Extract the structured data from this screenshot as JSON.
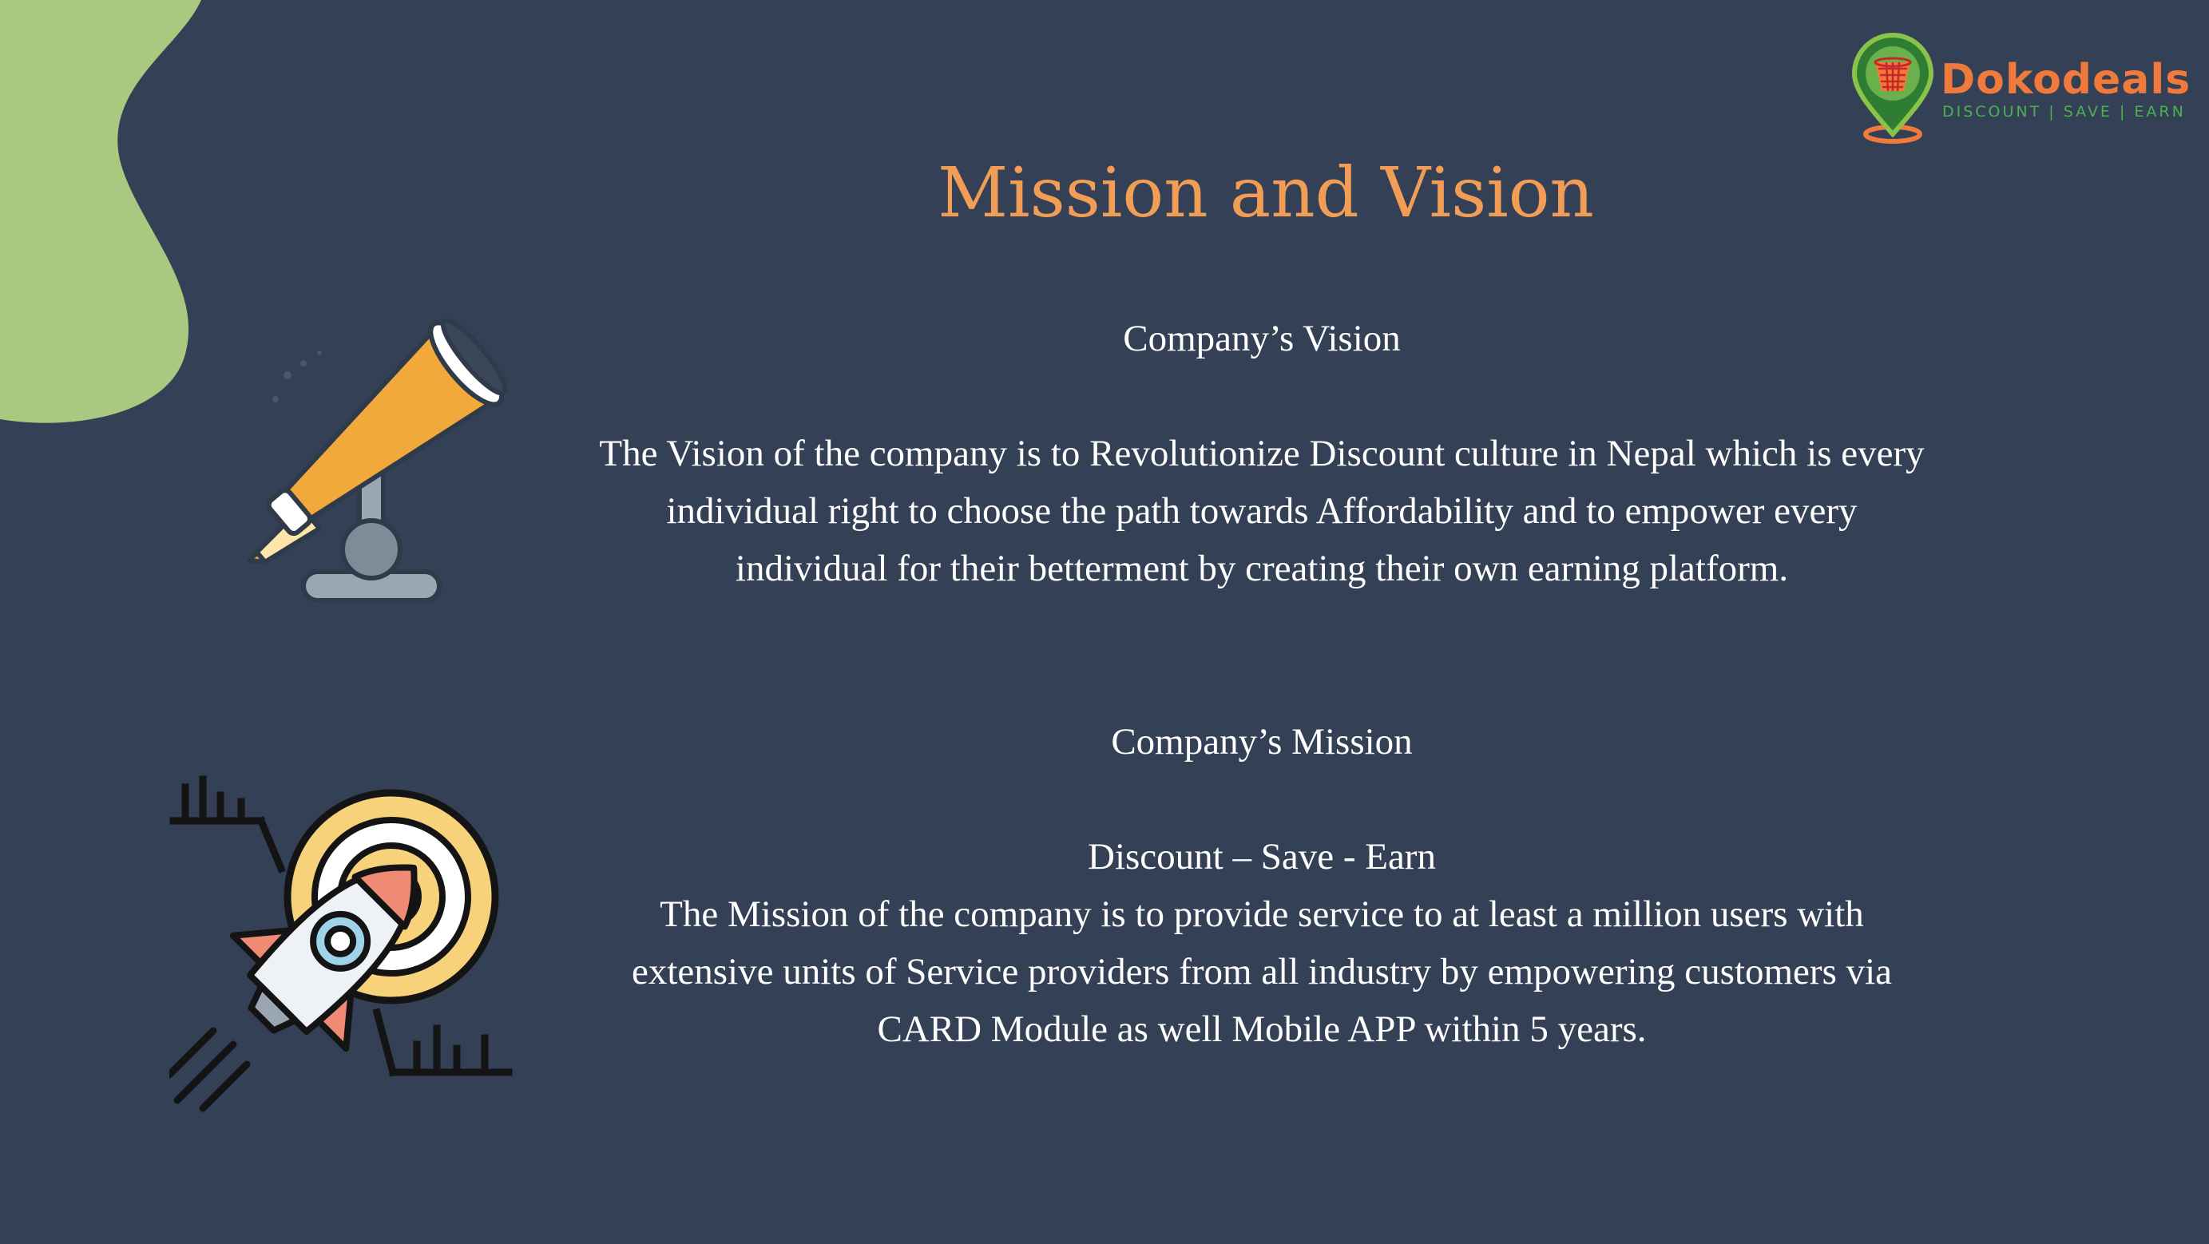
{
  "logo": {
    "name": "Dokodeals",
    "tagline": "DISCOUNT | SAVE | EARN"
  },
  "title": "Mission and Vision",
  "vision": {
    "heading": "Company’s Vision",
    "lines": [
      "The Vision of the company is to Revolutionize Discount culture in Nepal which is every",
      "individual right to choose the path towards Affordability and to empower every",
      "individual for their betterment by creating their own earning platform."
    ]
  },
  "mission": {
    "heading": "Company’s Mission",
    "subheading": "Discount – Save - Earn",
    "lines": [
      "The Mission of the company is to provide service to at least a million users with",
      "extensive units of Service providers from all industry by empowering customers via",
      "CARD Module as well Mobile APP within 5 years."
    ]
  },
  "icons": {
    "telescope": "telescope-icon",
    "rocket": "rocket-target-icon"
  },
  "colors": {
    "background": "#344055",
    "title": "#f19d55",
    "blob": "#a8c97f",
    "text": "#ffffff",
    "logo_primary": "#f07a3c",
    "logo_secondary": "#4caf50"
  }
}
